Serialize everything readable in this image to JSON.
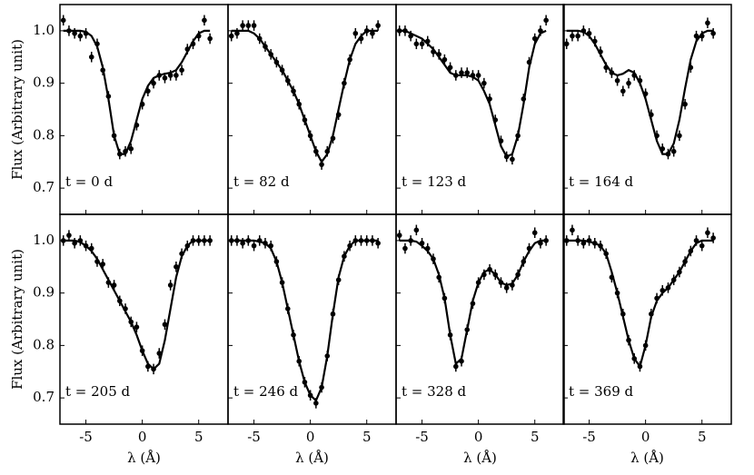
{
  "chart_data": [
    {
      "type": "errorbar",
      "annotation": "t = 0 d",
      "ylabel": "Flux (Arbitrary unit)",
      "color": "#000000",
      "x": [
        -7,
        -6.5,
        -6,
        -5.5,
        -5,
        -4.5,
        -4,
        -3.5,
        -3,
        -2.5,
        -2,
        -1.5,
        -1,
        -0.5,
        0,
        0.5,
        1,
        1.5,
        2,
        2.5,
        3,
        3.5,
        4,
        4.5,
        5,
        5.5,
        6
      ],
      "values": [
        1.02,
        1.0,
        0.995,
        0.99,
        0.995,
        0.95,
        0.975,
        0.925,
        0.875,
        0.8,
        0.765,
        0.77,
        0.775,
        0.82,
        0.86,
        0.885,
        0.9,
        0.915,
        0.91,
        0.915,
        0.915,
        0.925,
        0.965,
        0.975,
        0.99,
        1.02,
        0.985
      ],
      "model": [
        1,
        1,
        1,
        1,
        0.998,
        0.99,
        0.97,
        0.93,
        0.87,
        0.8,
        0.765,
        0.765,
        0.79,
        0.83,
        0.87,
        0.895,
        0.91,
        0.915,
        0.918,
        0.92,
        0.925,
        0.94,
        0.96,
        0.98,
        0.995,
        1,
        1
      ],
      "yerr": 0.01,
      "xlim": [
        -7.3,
        7.6
      ],
      "ylim": [
        0.65,
        1.05
      ],
      "xticks": [
        -5,
        0,
        5
      ],
      "yticks": [
        0.7,
        0.8,
        0.9,
        {
          "value": 1,
          "label": "1.0"
        }
      ]
    },
    {
      "type": "errorbar",
      "annotation": "t = 82 d",
      "color": "#000000",
      "x": [
        -7,
        -6.5,
        -6,
        -5.5,
        -5,
        -4.5,
        -4,
        -3.5,
        -3,
        -2.5,
        -2,
        -1.5,
        -1,
        -0.5,
        0,
        0.5,
        1,
        1.5,
        2,
        2.5,
        3,
        3.5,
        4,
        4.5,
        5,
        5.5,
        6
      ],
      "values": [
        0.99,
        0.995,
        1.01,
        1.01,
        1.01,
        0.985,
        0.97,
        0.955,
        0.94,
        0.925,
        0.905,
        0.885,
        0.86,
        0.83,
        0.8,
        0.77,
        0.745,
        0.77,
        0.795,
        0.84,
        0.9,
        0.945,
        0.995,
        0.985,
        1.0,
        0.995,
        1.01
      ],
      "model": [
        1,
        1,
        1,
        1,
        0.995,
        0.985,
        0.97,
        0.955,
        0.94,
        0.925,
        0.905,
        0.885,
        0.86,
        0.83,
        0.8,
        0.77,
        0.75,
        0.765,
        0.8,
        0.85,
        0.9,
        0.945,
        0.975,
        0.99,
        1,
        1,
        1
      ],
      "yerr": 0.01,
      "xlim": [
        -7.3,
        7.6
      ],
      "ylim": [
        0.65,
        1.05
      ],
      "xticks": [
        -5,
        0,
        5
      ],
      "yticks": [
        0.7,
        0.8,
        0.9,
        {
          "value": 1,
          "label": "1.0"
        }
      ]
    },
    {
      "type": "errorbar",
      "annotation": "t = 123 d",
      "color": "#000000",
      "x": [
        -7,
        -6.5,
        -6,
        -5.5,
        -5,
        -4.5,
        -4,
        -3.5,
        -3,
        -2.5,
        -2,
        -1.5,
        -1,
        -0.5,
        0,
        0.5,
        1,
        1.5,
        2,
        2.5,
        3,
        3.5,
        4,
        4.5,
        5,
        5.5,
        6
      ],
      "values": [
        1.0,
        1.0,
        0.99,
        0.975,
        0.975,
        0.98,
        0.96,
        0.955,
        0.945,
        0.93,
        0.915,
        0.92,
        0.92,
        0.915,
        0.915,
        0.9,
        0.87,
        0.83,
        0.79,
        0.76,
        0.755,
        0.8,
        0.87,
        0.94,
        0.985,
        1.0,
        1.02
      ],
      "model": [
        1,
        1,
        0.995,
        0.99,
        0.985,
        0.975,
        0.965,
        0.95,
        0.935,
        0.92,
        0.915,
        0.915,
        0.915,
        0.912,
        0.905,
        0.885,
        0.86,
        0.82,
        0.78,
        0.76,
        0.765,
        0.8,
        0.86,
        0.93,
        0.975,
        0.995,
        1
      ],
      "yerr": 0.01,
      "xlim": [
        -7.3,
        7.6
      ],
      "ylim": [
        0.65,
        1.05
      ],
      "xticks": [
        -5,
        0,
        5
      ],
      "yticks": [
        0.7,
        0.8,
        0.9,
        {
          "value": 1,
          "label": "1.0"
        }
      ]
    },
    {
      "type": "errorbar",
      "annotation": "t = 164 d",
      "color": "#000000",
      "x": [
        -7,
        -6.5,
        -6,
        -5.5,
        -5,
        -4.5,
        -4,
        -3.5,
        -3,
        -2.5,
        -2,
        -1.5,
        -1,
        -0.5,
        0,
        0.5,
        1,
        1.5,
        2,
        2.5,
        3,
        3.5,
        4,
        4.5,
        5,
        5.5,
        6
      ],
      "values": [
        0.975,
        0.99,
        0.99,
        1.0,
        0.995,
        0.98,
        0.96,
        0.93,
        0.92,
        0.905,
        0.885,
        0.9,
        0.915,
        0.905,
        0.88,
        0.84,
        0.8,
        0.775,
        0.765,
        0.77,
        0.8,
        0.86,
        0.93,
        0.99,
        0.99,
        1.015,
        0.995
      ],
      "model": [
        1,
        1,
        1,
        0.998,
        0.99,
        0.975,
        0.955,
        0.935,
        0.92,
        0.915,
        0.918,
        0.925,
        0.92,
        0.9,
        0.87,
        0.83,
        0.79,
        0.765,
        0.765,
        0.785,
        0.83,
        0.89,
        0.945,
        0.98,
        0.995,
        1,
        1
      ],
      "yerr": 0.01,
      "xlim": [
        -7.3,
        7.6
      ],
      "ylim": [
        0.65,
        1.05
      ],
      "xticks": [
        -5,
        0,
        5
      ],
      "yticks": [
        0.7,
        0.8,
        0.9,
        {
          "value": 1,
          "label": "1.0"
        }
      ]
    },
    {
      "type": "errorbar",
      "annotation": "t = 205 d",
      "ylabel": "Flux (Arbitrary unit)",
      "xlabel": "λ (Å)",
      "color": "#000000",
      "x": [
        -7,
        -6.5,
        -6,
        -5.5,
        -5,
        -4.5,
        -4,
        -3.5,
        -3,
        -2.5,
        -2,
        -1.5,
        -1,
        -0.5,
        0,
        0.5,
        1,
        1.5,
        2,
        2.5,
        3,
        3.5,
        4,
        4.5,
        5,
        5.5,
        6
      ],
      "values": [
        1.0,
        1.01,
        0.995,
        1.0,
        0.99,
        0.985,
        0.96,
        0.955,
        0.92,
        0.915,
        0.885,
        0.87,
        0.845,
        0.835,
        0.79,
        0.76,
        0.755,
        0.785,
        0.84,
        0.915,
        0.95,
        0.975,
        0.99,
        1.0,
        1.0,
        1.0,
        1.0
      ],
      "model": [
        1,
        1,
        1,
        0.997,
        0.99,
        0.98,
        0.965,
        0.945,
        0.925,
        0.905,
        0.885,
        0.865,
        0.845,
        0.82,
        0.79,
        0.765,
        0.755,
        0.765,
        0.81,
        0.87,
        0.93,
        0.97,
        0.99,
        1,
        1,
        1,
        1
      ],
      "yerr": 0.01,
      "xlim": [
        -7.3,
        7.6
      ],
      "ylim": [
        0.65,
        1.05
      ],
      "xticks": [
        -5,
        0,
        5
      ],
      "yticks": [
        0.7,
        0.8,
        0.9,
        {
          "value": 1,
          "label": "1.0"
        }
      ]
    },
    {
      "type": "errorbar",
      "annotation": "t = 246 d",
      "xlabel": "λ (Å)",
      "color": "#000000",
      "x": [
        -7,
        -6.5,
        -6,
        -5.5,
        -5,
        -4.5,
        -4,
        -3.5,
        -3,
        -2.5,
        -2,
        -1.5,
        -1,
        -0.5,
        0,
        0.5,
        1,
        1.5,
        2,
        2.5,
        3,
        3.5,
        4,
        4.5,
        5,
        5.5,
        6
      ],
      "values": [
        1.0,
        1.0,
        0.995,
        1.0,
        0.99,
        1.0,
        0.995,
        0.99,
        0.96,
        0.92,
        0.87,
        0.82,
        0.77,
        0.73,
        0.705,
        0.69,
        0.72,
        0.78,
        0.86,
        0.925,
        0.97,
        0.99,
        1.0,
        1.0,
        1.0,
        1.0,
        0.995
      ],
      "model": [
        1,
        1,
        1,
        1,
        1,
        0.998,
        0.995,
        0.985,
        0.96,
        0.92,
        0.87,
        0.82,
        0.77,
        0.73,
        0.705,
        0.695,
        0.72,
        0.78,
        0.86,
        0.93,
        0.97,
        0.99,
        1,
        1,
        1,
        1,
        1
      ],
      "yerr": 0.01,
      "xlim": [
        -7.3,
        7.6
      ],
      "ylim": [
        0.65,
        1.05
      ],
      "xticks": [
        -5,
        0,
        5
      ],
      "yticks": [
        0.7,
        0.8,
        0.9,
        {
          "value": 1,
          "label": "1.0"
        }
      ]
    },
    {
      "type": "errorbar",
      "annotation": "t = 328 d",
      "xlabel": "λ (Å)",
      "color": "#000000",
      "x": [
        -7,
        -6.5,
        -6,
        -5.5,
        -5,
        -4.5,
        -4,
        -3.5,
        -3,
        -2.5,
        -2,
        -1.5,
        -1,
        -0.5,
        0,
        0.5,
        1,
        1.5,
        2,
        2.5,
        3,
        3.5,
        4,
        4.5,
        5,
        5.5,
        6
      ],
      "values": [
        1.01,
        0.985,
        1.0,
        1.02,
        0.995,
        0.985,
        0.965,
        0.93,
        0.89,
        0.82,
        0.76,
        0.77,
        0.83,
        0.88,
        0.92,
        0.935,
        0.945,
        0.935,
        0.92,
        0.91,
        0.915,
        0.935,
        0.96,
        0.985,
        1.015,
        0.995,
        1.0
      ],
      "model": [
        1,
        1,
        1,
        0.998,
        0.99,
        0.98,
        0.965,
        0.935,
        0.89,
        0.82,
        0.765,
        0.775,
        0.83,
        0.885,
        0.92,
        0.94,
        0.945,
        0.935,
        0.92,
        0.915,
        0.918,
        0.935,
        0.96,
        0.98,
        0.995,
        1,
        1
      ],
      "yerr": 0.01,
      "xlim": [
        -7.3,
        7.6
      ],
      "ylim": [
        0.65,
        1.05
      ],
      "xticks": [
        -5,
        0,
        5
      ],
      "yticks": [
        0.7,
        0.8,
        0.9,
        {
          "value": 1,
          "label": "1.0"
        }
      ]
    },
    {
      "type": "errorbar",
      "annotation": "t = 369 d",
      "xlabel": "λ (Å)",
      "color": "#000000",
      "x": [
        -7,
        -6.5,
        -6,
        -5.5,
        -5,
        -4.5,
        -4,
        -3.5,
        -3,
        -2.5,
        -2,
        -1.5,
        -1,
        -0.5,
        0,
        0.5,
        1,
        1.5,
        2,
        2.5,
        3,
        3.5,
        4,
        4.5,
        5,
        5.5,
        6
      ],
      "values": [
        1.0,
        1.02,
        1.0,
        0.995,
        1.0,
        0.995,
        0.99,
        0.975,
        0.93,
        0.9,
        0.86,
        0.81,
        0.775,
        0.76,
        0.8,
        0.86,
        0.89,
        0.905,
        0.91,
        0.925,
        0.94,
        0.96,
        0.98,
        1.0,
        0.99,
        1.015,
        1.005
      ],
      "model": [
        1,
        1,
        1,
        1,
        0.998,
        0.995,
        0.99,
        0.975,
        0.94,
        0.9,
        0.855,
        0.81,
        0.775,
        0.76,
        0.8,
        0.855,
        0.885,
        0.9,
        0.91,
        0.925,
        0.94,
        0.96,
        0.98,
        0.995,
        1,
        1,
        1
      ],
      "yerr": 0.01,
      "xlim": [
        -7.3,
        7.6
      ],
      "ylim": [
        0.65,
        1.05
      ],
      "xticks": [
        -5,
        0,
        5
      ],
      "yticks": [
        0.7,
        0.8,
        0.9,
        {
          "value": 1,
          "label": "1.0"
        }
      ]
    }
  ]
}
